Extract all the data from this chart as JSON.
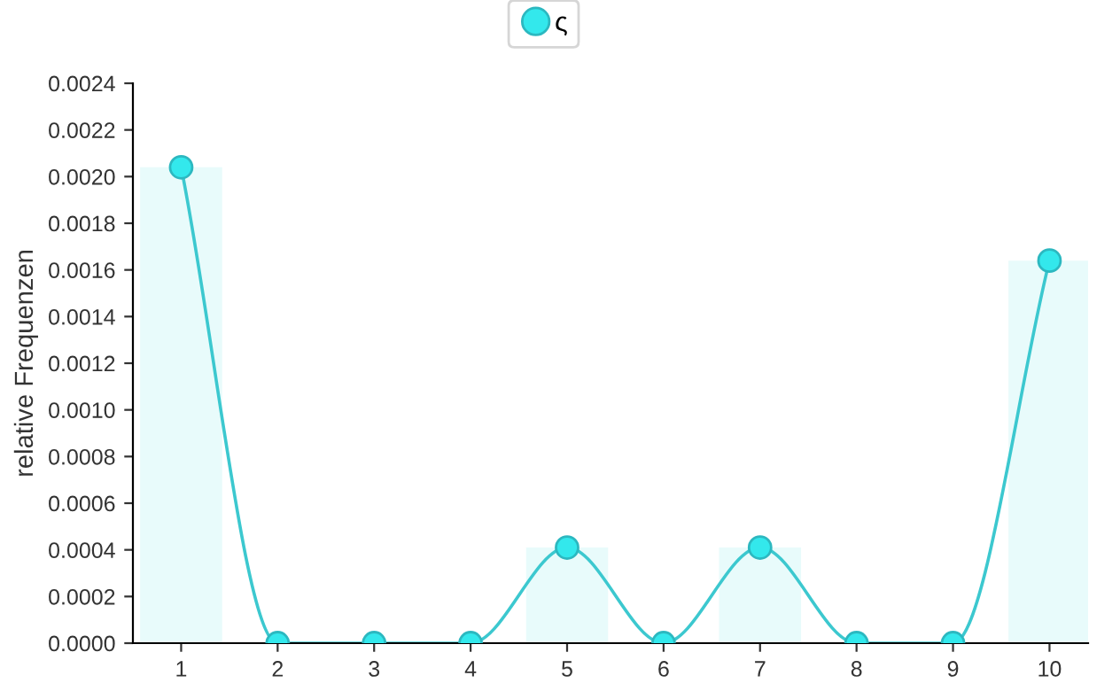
{
  "chart_data": {
    "type": "line",
    "ylabel": "relative Frequenzen",
    "categories": [
      "1",
      "2",
      "3",
      "4",
      "5",
      "6",
      "7",
      "8",
      "9",
      "10"
    ],
    "series": [
      {
        "type": "bar",
        "color": "#e8fbfb",
        "values": [
          0.00204,
          0,
          0,
          0,
          0.00041,
          0,
          0.00041,
          0,
          0,
          0.00164
        ]
      },
      {
        "name": "ς",
        "color": "#33e8ec",
        "values": [
          0.00204,
          0,
          0,
          0,
          0.00041,
          0,
          0.00041,
          0,
          0,
          0.00164
        ]
      }
    ],
    "ylim": [
      0,
      0.0024
    ],
    "yticks": [
      {
        "value": 0,
        "label": "0.0000"
      },
      0.0002,
      0.0004,
      0.0006,
      0.0008,
      {
        "value": 0.001,
        "label": "0.0010"
      },
      0.0012,
      0.0014,
      0.0016,
      0.0018,
      {
        "value": 0.002,
        "label": "0.0020"
      },
      0.0022,
      0.0024
    ],
    "grid": false,
    "legend": "top",
    "marker": "circle",
    "line_style": "solid"
  }
}
